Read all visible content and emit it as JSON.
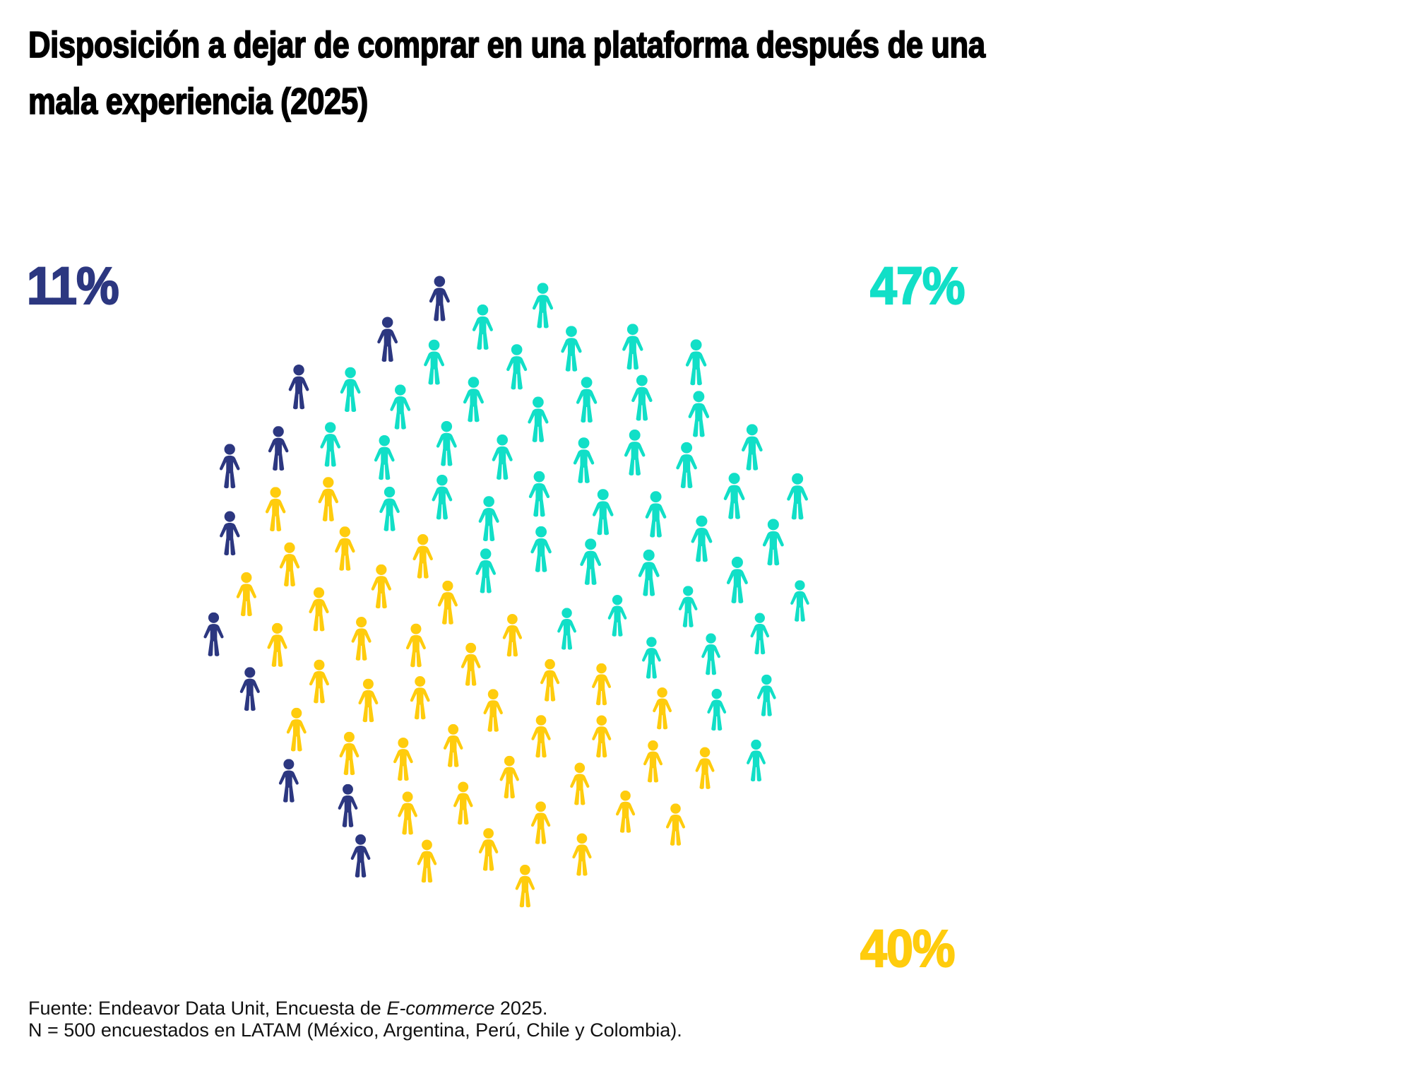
{
  "title": {
    "line1": "Disposición a dejar de comprar en una plataforma después de una",
    "line2": "mala experiencia (2025)"
  },
  "chart_data": {
    "type": "pictogram",
    "unit_icon": "person-icon",
    "total_icons": 98,
    "layout": {
      "shape": "circle",
      "arrangement": "phyllotaxis",
      "legend_position": "labels-around-circle"
    },
    "series": [
      {
        "label": "11%",
        "value": 11,
        "color": "#2C3780",
        "region": "left-rim"
      },
      {
        "label": "47%",
        "value": 47,
        "color": "#11DFC7",
        "region": "upper-right"
      },
      {
        "label": "40%",
        "value": 40,
        "color": "#FFCC0D",
        "region": "lower-left"
      }
    ]
  },
  "source": {
    "line1_before_italic": "Fuente: Endeavor Data Unit, Encuesta de ",
    "line1_italic": "E-commerce",
    "line1_after_italic": " 2025.",
    "line2": "N = 500 encuestados en LATAM (México, Argentina, Perú, Chile y Colombia)."
  }
}
